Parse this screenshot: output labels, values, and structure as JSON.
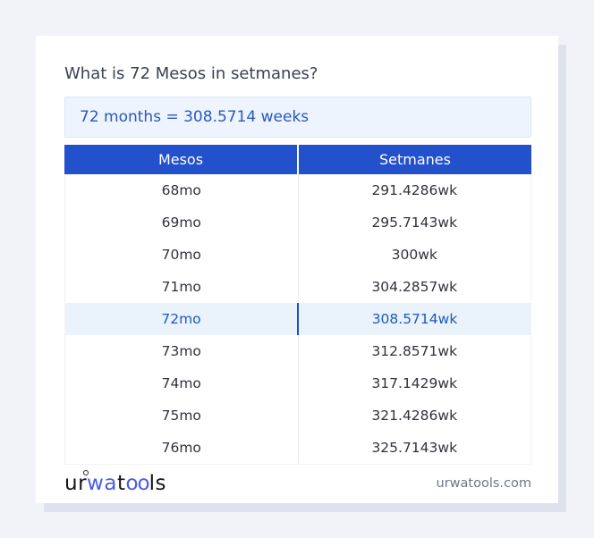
{
  "colors": {
    "page_bg": "#f1f3f8",
    "card_bg": "#ffffff",
    "card_shadow": "#dde2ee",
    "title_text": "#3a4150",
    "answer_bg": "#edf4fd",
    "answer_border": "#dce8f6",
    "answer_text": "#2b58bd",
    "table_header_bg": "#2350cb",
    "table_header_text": "#ffffff",
    "row_text": "#30333b",
    "row_divider": "#ececec",
    "highlight_row_bg": "#eaf2fc",
    "highlight_row_text": "#1e5abc",
    "highlight_row_divider": "#1d4fbe",
    "footer_text": "#6f7886",
    "logo_blue": "#4b5ce4",
    "logo_dark": "#15161a"
  },
  "title": "What is 72 Mesos in setmanes?",
  "answer": "72 months = 308.5714 weeks",
  "table": {
    "columns": [
      "Mesos",
      "Setmanes"
    ],
    "rows": [
      {
        "mesos": "68mo",
        "setmanes": "291.4286wk",
        "highlighted": false
      },
      {
        "mesos": "69mo",
        "setmanes": "295.7143wk",
        "highlighted": false
      },
      {
        "mesos": "70mo",
        "setmanes": "300wk",
        "highlighted": false
      },
      {
        "mesos": "71mo",
        "setmanes": "304.2857wk",
        "highlighted": false
      },
      {
        "mesos": "72mo",
        "setmanes": "308.5714wk",
        "highlighted": true
      },
      {
        "mesos": "73mo",
        "setmanes": "312.8571wk",
        "highlighted": false
      },
      {
        "mesos": "74mo",
        "setmanes": "317.1429wk",
        "highlighted": false
      },
      {
        "mesos": "75mo",
        "setmanes": "321.4286wk",
        "highlighted": false
      },
      {
        "mesos": "76mo",
        "setmanes": "325.7143wk",
        "highlighted": false
      }
    ]
  },
  "footer": {
    "logo": {
      "seg1": "ur",
      "seg2": "wa",
      "seg3": "t",
      "seg4": "oo",
      "seg5": "ls"
    },
    "website": "urwatools.com"
  }
}
